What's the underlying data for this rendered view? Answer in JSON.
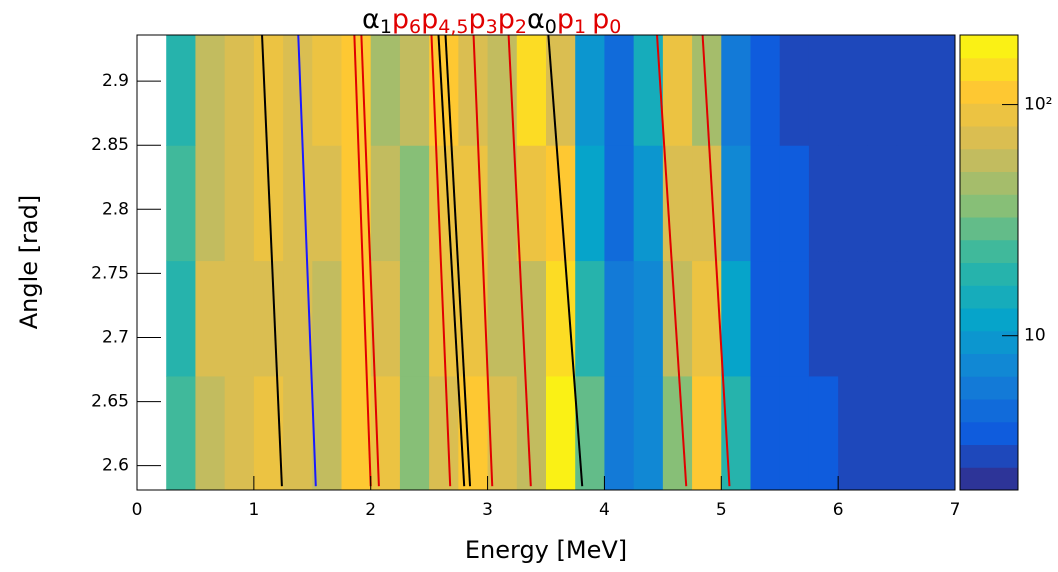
{
  "chart_data": {
    "type": "heatmap",
    "x_label": "Energy [MeV]",
    "y_label": "Angle [rad]",
    "xlim": [
      0,
      7
    ],
    "xticks": [
      0,
      1,
      2,
      3,
      4,
      5,
      6,
      7
    ],
    "ylim": [
      2.581,
      2.936
    ],
    "yticks": [
      2.6,
      2.65,
      2.7,
      2.75,
      2.8,
      2.85,
      2.9
    ],
    "zlim": [
      2.15,
      200
    ],
    "zticks": [
      10,
      {
        "value": 100,
        "label": "10²"
      }
    ],
    "zlog": true,
    "colormap": [
      "#352a87",
      "#0f5cdd",
      "#1481d6",
      "#06a4ca",
      "#2eb7a4",
      "#87bf77",
      "#d1bb59",
      "#fec832",
      "#f9fb0e"
    ],
    "color_levels": 20,
    "xbins": [
      0,
      0.25,
      0.5,
      0.75,
      1,
      1.25,
      1.5,
      1.75,
      2,
      2.25,
      2.5,
      2.75,
      3,
      3.25,
      3.5,
      3.75,
      4,
      4.25,
      4.5,
      4.75,
      5,
      5.25,
      5.5,
      5.75,
      6,
      6.25,
      6.5,
      6.75,
      7
    ],
    "ybins": [
      2.581,
      2.67,
      2.76,
      2.85,
      2.936
    ],
    "z": [
      [
        null,
        25,
        60,
        70,
        85,
        80,
        55,
        110,
        90,
        40,
        80,
        110,
        70,
        55,
        160,
        30,
        6,
        7,
        40,
        110,
        20,
        4,
        4,
        4,
        3,
        3,
        3,
        3
      ],
      [
        null,
        20,
        65,
        75,
        80,
        75,
        60,
        120,
        70,
        35,
        90,
        100,
        60,
        60,
        150,
        18,
        6,
        8,
        60,
        90,
        12,
        4,
        4,
        3,
        3,
        3,
        3,
        3
      ],
      [
        null,
        22,
        60,
        75,
        85,
        70,
        70,
        120,
        55,
        40,
        100,
        90,
        55,
        90,
        120,
        12,
        5,
        9,
        80,
        70,
        8,
        4,
        4,
        3,
        3,
        3,
        3,
        3
      ],
      [
        null,
        18,
        55,
        70,
        85,
        70,
        90,
        110,
        45,
        60,
        110,
        70,
        60,
        130,
        70,
        9,
        5,
        15,
        100,
        45,
        6,
        4,
        3,
        3,
        3,
        3,
        3,
        3
      ]
    ],
    "curves": [
      {
        "color": "#000000",
        "x": [
          1.07,
          1.24
        ],
        "y": [
          2.936,
          2.584
        ]
      },
      {
        "color": "#1a1aff",
        "x": [
          1.38,
          1.53
        ],
        "y": [
          2.936,
          2.584
        ]
      },
      {
        "color": "#e00000",
        "x": [
          1.86,
          2.0
        ],
        "y": [
          2.936,
          2.584
        ]
      },
      {
        "color": "#e00000",
        "x": [
          1.92,
          2.07
        ],
        "y": [
          2.936,
          2.584
        ]
      },
      {
        "color": "#e00000",
        "x": [
          2.52,
          2.68
        ],
        "y": [
          2.936,
          2.584
        ]
      },
      {
        "color": "#000000",
        "x": [
          2.58,
          2.8
        ],
        "y": [
          2.936,
          2.584
        ]
      },
      {
        "color": "#000000",
        "x": [
          2.64,
          2.85
        ],
        "y": [
          2.936,
          2.584
        ]
      },
      {
        "color": "#e00000",
        "x": [
          2.88,
          3.04
        ],
        "y": [
          2.936,
          2.584
        ]
      },
      {
        "color": "#e00000",
        "x": [
          3.18,
          3.37
        ],
        "y": [
          2.936,
          2.584
        ]
      },
      {
        "color": "#000000",
        "x": [
          3.52,
          3.81
        ],
        "y": [
          2.936,
          2.584
        ]
      },
      {
        "color": "#e00000",
        "x": [
          4.45,
          4.7
        ],
        "y": [
          2.936,
          2.584
        ]
      },
      {
        "color": "#e00000",
        "x": [
          4.84,
          5.07
        ],
        "y": [
          2.936,
          2.584
        ]
      }
    ],
    "annotations": [
      {
        "text": "α",
        "sub": "1",
        "color": "#000000"
      },
      {
        "text": "p",
        "sub": "6",
        "color": "#e00000"
      },
      {
        "text": "p",
        "sub": "4,5",
        "color": "#e00000"
      },
      {
        "text": "p",
        "sub": "3",
        "color": "#e00000"
      },
      {
        "text": "p",
        "sub": "2",
        "color": "#e00000"
      },
      {
        "text": "α",
        "sub": "0",
        "color": "#000000"
      },
      {
        "text": "p",
        "sub": "1",
        "color": "#e00000"
      },
      {
        "text": "p",
        "sub": "0",
        "color": "#e00000"
      }
    ]
  }
}
